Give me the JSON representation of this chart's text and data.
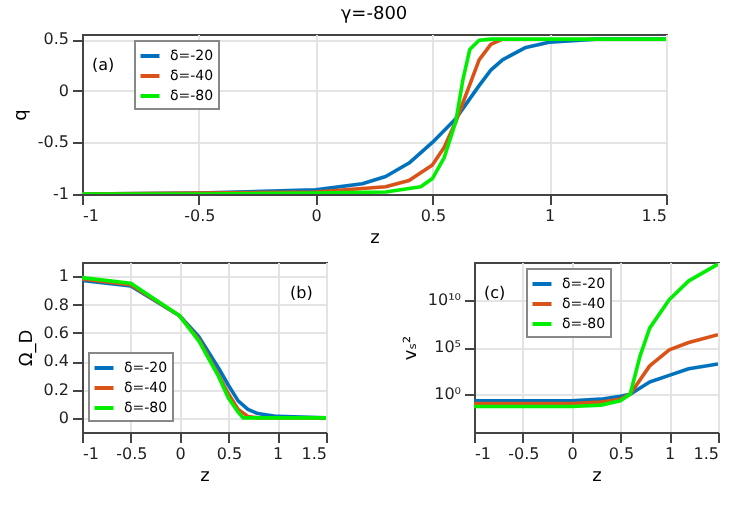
{
  "chart_data": [
    {
      "type": "line",
      "title": "γ=-800",
      "xlabel": "z",
      "ylabel": "q",
      "xlim": [
        -1,
        1.5
      ],
      "ylim": [
        -1,
        0.55
      ],
      "xticks": [
        -1,
        -0.5,
        0,
        0.5,
        1,
        1.5
      ],
      "yticks": [
        -1,
        -0.5,
        0,
        0.5
      ],
      "grid": true,
      "legend": "top left",
      "annotations": [
        "(a)"
      ],
      "series": [
        {
          "name": "δ=-20",
          "color": "#0072bd",
          "x": [
            -1,
            -0.5,
            0,
            0.2,
            0.3,
            0.4,
            0.5,
            0.6,
            0.7,
            0.75,
            0.8,
            0.9,
            1.0,
            1.2,
            1.5
          ],
          "values": [
            -1,
            -0.99,
            -0.96,
            -0.9,
            -0.83,
            -0.7,
            -0.5,
            -0.27,
            0.05,
            0.2,
            0.3,
            0.42,
            0.47,
            0.5,
            0.5
          ]
        },
        {
          "name": "δ=-40",
          "color": "#d95319",
          "x": [
            -1,
            -0.5,
            0,
            0.3,
            0.4,
            0.5,
            0.55,
            0.6,
            0.65,
            0.7,
            0.75,
            0.8
          ],
          "values": [
            -1,
            -0.99,
            -0.98,
            -0.93,
            -0.87,
            -0.72,
            -0.55,
            -0.3,
            0.0,
            0.3,
            0.45,
            0.5
          ]
        },
        {
          "name": "δ=-80",
          "color": "#00ee00",
          "x": [
            -1,
            -0.5,
            0,
            0.3,
            0.45,
            0.5,
            0.55,
            0.6,
            0.63,
            0.66,
            0.7,
            0.75,
            1.0,
            1.5
          ],
          "values": [
            -1,
            -1,
            -0.99,
            -0.98,
            -0.93,
            -0.85,
            -0.65,
            -0.3,
            0.1,
            0.4,
            0.49,
            0.5,
            0.5,
            0.5
          ]
        }
      ]
    },
    {
      "type": "line",
      "xlabel": "z",
      "ylabel": "Ω_D",
      "xlim": [
        -1,
        1.5
      ],
      "ylim": [
        -0.1,
        1.1
      ],
      "xticks": [
        -1,
        -0.5,
        0,
        0.5,
        1,
        1.5
      ],
      "yticks": [
        0,
        0.2,
        0.4,
        0.6,
        0.8,
        1
      ],
      "grid": true,
      "legend": "bottom left",
      "annotations": [
        "(b)"
      ],
      "series": [
        {
          "name": "δ=-20",
          "color": "#0072bd",
          "x": [
            -1,
            -0.5,
            0,
            0.2,
            0.4,
            0.5,
            0.6,
            0.7,
            0.8,
            1.0,
            1.5
          ],
          "values": [
            0.97,
            0.93,
            0.72,
            0.57,
            0.35,
            0.23,
            0.12,
            0.06,
            0.03,
            0.01,
            0
          ]
        },
        {
          "name": "δ=-40",
          "color": "#d95319",
          "x": [
            -1,
            -0.5,
            0,
            0.2,
            0.4,
            0.5,
            0.6,
            0.7,
            0.8,
            1.5
          ],
          "values": [
            0.98,
            0.94,
            0.72,
            0.55,
            0.3,
            0.17,
            0.06,
            0.01,
            0,
            0
          ]
        },
        {
          "name": "δ=-80",
          "color": "#00ee00",
          "x": [
            -1,
            -0.5,
            0,
            0.2,
            0.4,
            0.5,
            0.6,
            0.65,
            1.5
          ],
          "values": [
            0.99,
            0.95,
            0.72,
            0.54,
            0.29,
            0.14,
            0.04,
            0,
            0
          ]
        }
      ]
    },
    {
      "type": "line",
      "xlabel": "z",
      "ylabel": "vₛ²",
      "log": "y",
      "xlim": [
        -1,
        1.5
      ],
      "ylim": [
        0.0001,
        100000000000000.0
      ],
      "xticks": [
        -1,
        -0.5,
        0,
        0.5,
        1,
        1.5
      ],
      "yticks": [
        {
          "value": 1,
          "label": "10⁰"
        },
        {
          "value": 100000,
          "label": "10⁵"
        },
        {
          "value": 10000000000,
          "label": "10¹⁰"
        }
      ],
      "grid": true,
      "legend": "top left",
      "annotations": [
        "(c)"
      ],
      "series": [
        {
          "name": "δ=-20",
          "color": "#0072bd",
          "x": [
            -1,
            0,
            0.3,
            0.5,
            0.6,
            0.8,
            1.0,
            1.2,
            1.5
          ],
          "values": [
            0.2,
            0.2,
            0.3,
            0.6,
            1,
            20,
            100,
            500,
            1600
          ]
        },
        {
          "name": "δ=-40",
          "color": "#d95319",
          "x": [
            -1,
            0,
            0.3,
            0.5,
            0.6,
            0.8,
            1.0,
            1.2,
            1.5
          ],
          "values": [
            0.1,
            0.1,
            0.15,
            0.3,
            1,
            1000,
            50000,
            300000,
            2000000
          ]
        },
        {
          "name": "δ=-80",
          "color": "#00ee00",
          "x": [
            -1,
            0,
            0.3,
            0.5,
            0.6,
            0.7,
            0.8,
            1.0,
            1.2,
            1.5
          ],
          "values": [
            0.05,
            0.05,
            0.07,
            0.2,
            1,
            10000,
            10000000,
            10000000000,
            1000000000000,
            60000000000000
          ]
        }
      ]
    }
  ]
}
